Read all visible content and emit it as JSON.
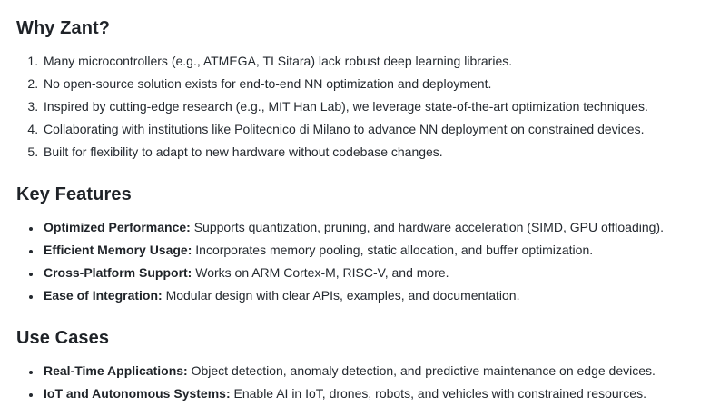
{
  "sections": [
    {
      "heading": "Why Zant?",
      "list_type": "ordered",
      "items": [
        "Many microcontrollers (e.g., ATMEGA, TI Sitara) lack robust deep learning libraries.",
        "No open-source solution exists for end-to-end NN optimization and deployment.",
        "Inspired by cutting-edge research (e.g., MIT Han Lab), we leverage state-of-the-art optimization techniques.",
        "Collaborating with institutions like Politecnico di Milano to advance NN deployment on constrained devices.",
        "Built for flexibility to adapt to new hardware without codebase changes."
      ]
    },
    {
      "heading": "Key Features",
      "list_type": "bulleted",
      "items": [
        {
          "lead": "Optimized Performance:",
          "text": " Supports quantization, pruning, and hardware acceleration (SIMD, GPU offloading)."
        },
        {
          "lead": "Efficient Memory Usage:",
          "text": " Incorporates memory pooling, static allocation, and buffer optimization."
        },
        {
          "lead": "Cross-Platform Support:",
          "text": " Works on ARM Cortex-M, RISC-V, and more."
        },
        {
          "lead": "Ease of Integration:",
          "text": " Modular design with clear APIs, examples, and documentation."
        }
      ]
    },
    {
      "heading": "Use Cases",
      "list_type": "bulleted",
      "items": [
        {
          "lead": "Real-Time Applications:",
          "text": " Object detection, anomaly detection, and predictive maintenance on edge devices."
        },
        {
          "lead": "IoT and Autonomous Systems:",
          "text": " Enable AI in IoT, drones, robots, and vehicles with constrained resources."
        }
      ]
    }
  ],
  "colors": {
    "heading_text": "#1f2328",
    "body_text": "#24292f",
    "background": "#ffffff"
  }
}
